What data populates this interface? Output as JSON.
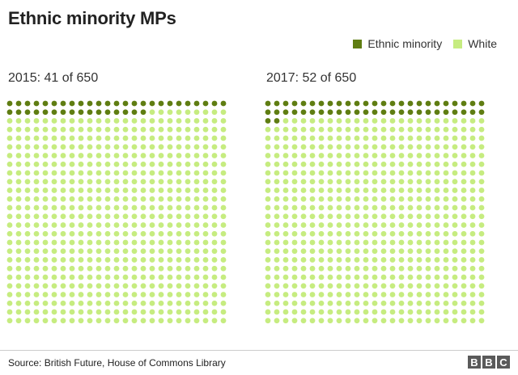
{
  "title": "Ethnic minority MPs",
  "legend": [
    {
      "label": "Ethnic minority",
      "color": "#5f7d12"
    },
    {
      "label": "White",
      "color": "#c6ec80"
    }
  ],
  "chart_data": [
    {
      "type": "waffle",
      "title": "2015: 41 of 650",
      "total": 650,
      "columns": 25,
      "series": [
        {
          "name": "Ethnic minority",
          "value": 41
        },
        {
          "name": "White",
          "value": 609
        }
      ]
    },
    {
      "type": "waffle",
      "title": "2017: 52 of 650",
      "total": 650,
      "columns": 25,
      "series": [
        {
          "name": "Ethnic minority",
          "value": 52
        },
        {
          "name": "White",
          "value": 598
        }
      ]
    }
  ],
  "footer": {
    "source": "Source: British Future, House of Commons Library",
    "logo": [
      "B",
      "B",
      "C"
    ]
  }
}
